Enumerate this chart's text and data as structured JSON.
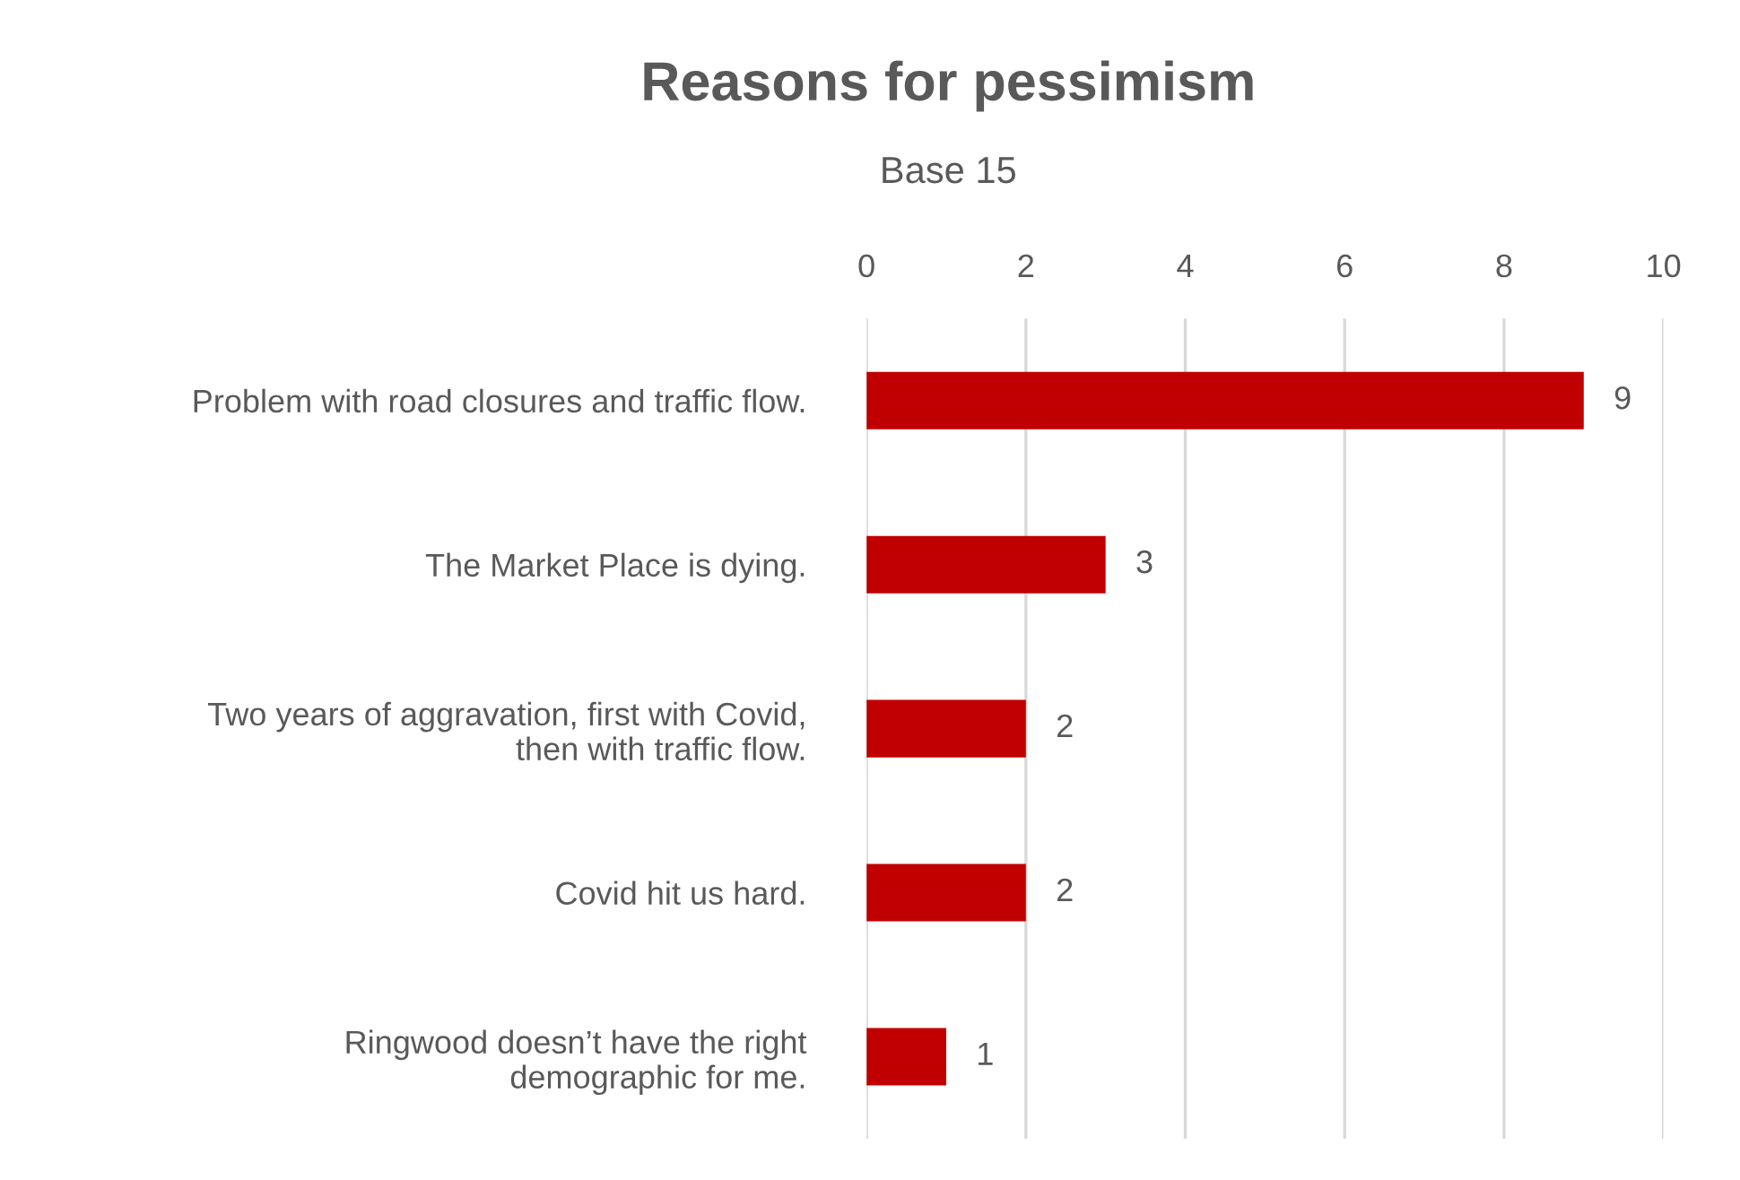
{
  "chart_data": {
    "type": "bar",
    "orientation": "horizontal",
    "title": "Reasons for pessimism",
    "subtitle": "Base 15",
    "categories": [
      "Problem with road closures and traffic flow.",
      "The Market Place is dying.",
      "Two years of aggravation, first with Covid,\nthen with traffic flow.",
      "Covid hit us hard.",
      "Ringwood doesn’t have the right\ndemographic for me."
    ],
    "values": [
      9,
      3,
      2,
      2,
      1
    ],
    "color": "#c00000",
    "xlim": [
      0,
      10
    ],
    "xticks": [
      0,
      2,
      4,
      6,
      8,
      10
    ],
    "grid": "x",
    "data_labels": true,
    "legend": false
  }
}
